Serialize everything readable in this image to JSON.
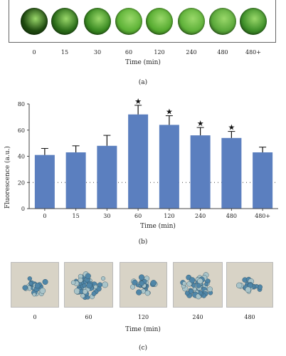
{
  "panel_a": {
    "time_labels": [
      "0",
      "15",
      "30",
      "60",
      "120",
      "240",
      "480",
      "480+"
    ],
    "axis_title": "Time (min)",
    "panel_label": "(a)",
    "well_colors": [
      "#1f4a10",
      "#2c6d1a",
      "#3a8a22",
      "#5db236",
      "#56ab30",
      "#60b23a",
      "#5aa83a",
      "#3e8f29"
    ]
  },
  "chart_data": {
    "type": "bar",
    "categories": [
      "0",
      "15",
      "30",
      "60",
      "120",
      "240",
      "480",
      "480+"
    ],
    "series": [
      {
        "values": [
          41,
          43,
          48,
          72,
          64,
          56,
          54,
          43
        ],
        "error_upper": [
          5,
          5,
          8,
          7,
          7,
          6,
          5,
          4
        ]
      }
    ],
    "significant": [
      false,
      false,
      false,
      true,
      true,
      true,
      true,
      false
    ],
    "significance_marker": "★",
    "xlabel": "Time (min)",
    "ylabel": "Fluorescence (a.u.)",
    "ylim": [
      0,
      80
    ],
    "yticks": [
      "0",
      "20",
      "40",
      "60",
      "80"
    ],
    "reference_line": 20,
    "bar_color": "#5b7fbf",
    "panel_label": "(b)"
  },
  "panel_c": {
    "time_labels": [
      "0",
      "60",
      "120",
      "240",
      "480"
    ],
    "axis_title": "Time (min)",
    "panel_label": "(c)"
  }
}
